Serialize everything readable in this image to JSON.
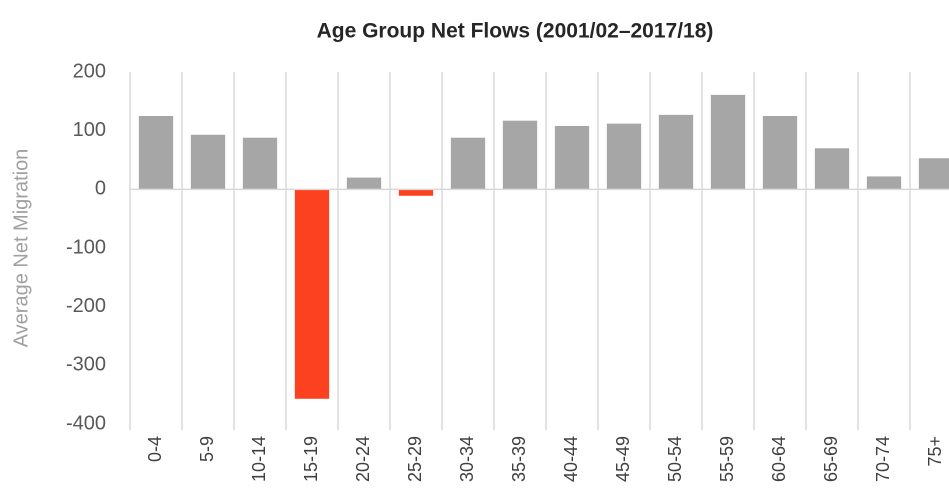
{
  "chart_data": {
    "type": "bar",
    "title": "Age Group Net Flows (2001/02–2017/18)",
    "y_label": "Average Net Migration",
    "categories": [
      "0-4",
      "5-9",
      "10-14",
      "15-19",
      "20-24",
      "25-29",
      "30-34",
      "35-39",
      "40-44",
      "45-49",
      "50-54",
      "55-59",
      "60-64",
      "65-69",
      "70-74",
      "75+"
    ],
    "values": [
      125,
      93,
      88,
      -357,
      20,
      -11,
      88,
      117,
      108,
      112,
      127,
      161,
      125,
      70,
      22,
      53
    ],
    "color": "#a6a6a6",
    "negative_color": "#fc4120",
    "ylim": [
      -400,
      200
    ],
    "yticks": [
      -400,
      -300,
      -200,
      -100,
      0,
      100,
      200
    ],
    "grid": false
  }
}
